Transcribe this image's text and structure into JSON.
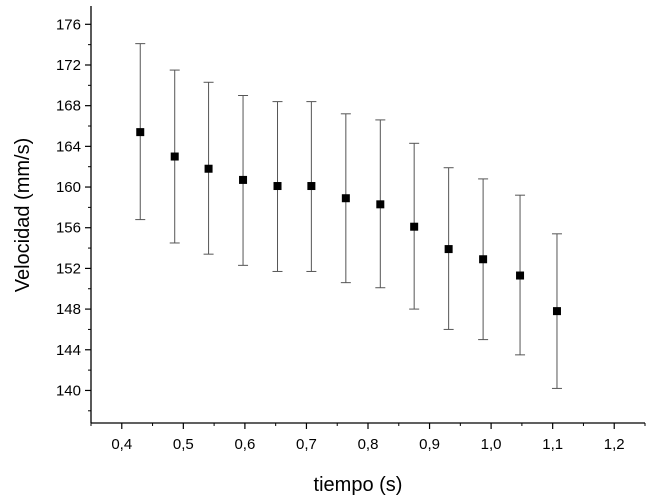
{
  "chart_data": {
    "type": "scatter",
    "title": "",
    "xlabel": "tiempo (s)",
    "ylabel": "Velocidad (mm/s)",
    "xlim": [
      0.35,
      1.25
    ],
    "ylim": [
      136.8,
      177.8
    ],
    "grid": false,
    "legend": "none",
    "x_ticks": [
      {
        "value": 0.4,
        "label": "0,4"
      },
      {
        "value": 0.5,
        "label": "0,5"
      },
      {
        "value": 0.6,
        "label": "0,6"
      },
      {
        "value": 0.7,
        "label": "0,7"
      },
      {
        "value": 0.8,
        "label": "0,8"
      },
      {
        "value": 0.9,
        "label": "0,9"
      },
      {
        "value": 1.0,
        "label": "1,0"
      },
      {
        "value": 1.1,
        "label": "1,1"
      },
      {
        "value": 1.2,
        "label": "1,2"
      }
    ],
    "y_ticks": [
      {
        "value": 140,
        "label": "140"
      },
      {
        "value": 144,
        "label": "144"
      },
      {
        "value": 148,
        "label": "148"
      },
      {
        "value": 152,
        "label": "152"
      },
      {
        "value": 156,
        "label": "156"
      },
      {
        "value": 160,
        "label": "160"
      },
      {
        "value": 164,
        "label": "164"
      },
      {
        "value": 168,
        "label": "168"
      },
      {
        "value": 172,
        "label": "172"
      },
      {
        "value": 176,
        "label": "176"
      }
    ],
    "points": [
      {
        "x": 0.43,
        "y": 165.4,
        "err_low": 156.8,
        "err_high": 174.1
      },
      {
        "x": 0.486,
        "y": 163.0,
        "err_low": 154.5,
        "err_high": 171.5
      },
      {
        "x": 0.541,
        "y": 161.8,
        "err_low": 153.4,
        "err_high": 170.3
      },
      {
        "x": 0.597,
        "y": 160.7,
        "err_low": 152.3,
        "err_high": 169.0
      },
      {
        "x": 0.653,
        "y": 160.1,
        "err_low": 151.7,
        "err_high": 168.4
      },
      {
        "x": 0.708,
        "y": 160.1,
        "err_low": 151.7,
        "err_high": 168.4
      },
      {
        "x": 0.764,
        "y": 158.9,
        "err_low": 150.6,
        "err_high": 167.2
      },
      {
        "x": 0.82,
        "y": 158.3,
        "err_low": 150.1,
        "err_high": 166.6
      },
      {
        "x": 0.875,
        "y": 156.1,
        "err_low": 148.0,
        "err_high": 164.3
      },
      {
        "x": 0.931,
        "y": 153.9,
        "err_low": 146.0,
        "err_high": 161.9
      },
      {
        "x": 0.987,
        "y": 152.9,
        "err_low": 145.0,
        "err_high": 160.8
      },
      {
        "x": 1.047,
        "y": 151.3,
        "err_low": 143.5,
        "err_high": 159.2
      },
      {
        "x": 1.107,
        "y": 147.8,
        "err_low": 140.2,
        "err_high": 155.4
      }
    ],
    "colors": {
      "marker": "#000000",
      "errorbar": "#555555",
      "axis": "#000000"
    }
  }
}
